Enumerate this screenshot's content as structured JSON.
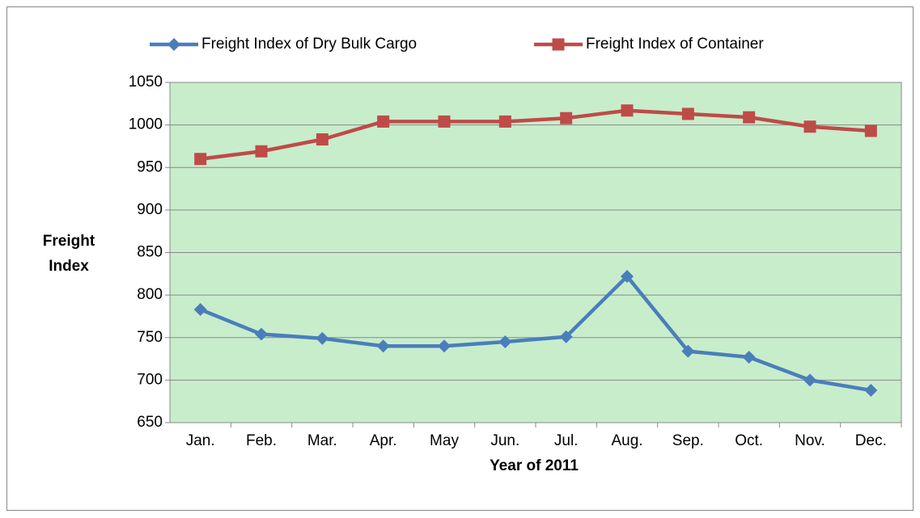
{
  "chart_data": {
    "type": "line",
    "x_label": "Year of 2011",
    "y_label": "Freight Index",
    "categories": [
      "Jan.",
      "Feb.",
      "Mar.",
      "Apr.",
      "May",
      "Jun.",
      "Jul.",
      "Aug.",
      "Sep.",
      "Oct.",
      "Nov.",
      "Dec."
    ],
    "series": [
      {
        "name": "Freight Index of Dry Bulk Cargo",
        "color": "#4a7ebb",
        "marker": "diamond",
        "values": [
          783,
          754,
          749,
          740,
          740,
          745,
          751,
          822,
          734,
          727,
          700,
          688
        ]
      },
      {
        "name": "Freight Index of Container",
        "color": "#be4b48",
        "marker": "square",
        "values": [
          960,
          969,
          983,
          1004,
          1004,
          1004,
          1008,
          1017,
          1013,
          1009,
          998,
          993
        ]
      }
    ],
    "ylim": [
      650,
      1050
    ],
    "yticks": [
      650,
      700,
      750,
      800,
      850,
      900,
      950,
      1000,
      1050
    ],
    "grid": true,
    "legend": "top",
    "plot_background": "#c8edcb"
  }
}
